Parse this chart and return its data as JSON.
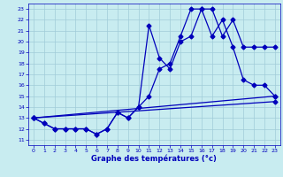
{
  "xlabel": "Graphe des températures (°c)",
  "xlim": [
    -0.5,
    23.5
  ],
  "ylim": [
    10.5,
    23.5
  ],
  "yticks": [
    11,
    12,
    13,
    14,
    15,
    16,
    17,
    18,
    19,
    20,
    21,
    22,
    23
  ],
  "xticks": [
    0,
    1,
    2,
    3,
    4,
    5,
    6,
    7,
    8,
    9,
    10,
    11,
    12,
    13,
    14,
    15,
    16,
    17,
    18,
    19,
    20,
    21,
    22,
    23
  ],
  "bg_color": "#c8ecf0",
  "line_color": "#0000bb",
  "grid_color": "#a0ccd8",
  "curve1_x": [
    0,
    1,
    2,
    3,
    4,
    5,
    6,
    7,
    8,
    9,
    10,
    11,
    12,
    13,
    14,
    15,
    16,
    17,
    18,
    19,
    20,
    21,
    22,
    23
  ],
  "curve1_y": [
    13.0,
    12.5,
    12.0,
    12.0,
    12.0,
    12.0,
    11.5,
    12.0,
    13.5,
    13.0,
    14.0,
    21.5,
    18.5,
    17.5,
    20.0,
    20.5,
    23.0,
    23.0,
    20.5,
    22.0,
    19.5,
    19.5,
    19.5,
    19.5
  ],
  "curve2_x": [
    0,
    1,
    2,
    3,
    4,
    5,
    6,
    7,
    8,
    9,
    10,
    11,
    12,
    13,
    14,
    15,
    16,
    17,
    18,
    19,
    20,
    21,
    22,
    23
  ],
  "curve2_y": [
    13.0,
    12.5,
    12.0,
    12.0,
    12.0,
    12.0,
    11.5,
    12.0,
    13.5,
    13.0,
    14.0,
    15.0,
    17.5,
    18.0,
    20.5,
    23.0,
    23.0,
    20.5,
    22.0,
    19.5,
    16.5,
    16.0,
    16.0,
    15.0
  ],
  "line3_x": [
    0,
    23
  ],
  "line3_y": [
    13.0,
    15.0
  ],
  "line4_x": [
    0,
    23
  ],
  "line4_y": [
    13.0,
    14.5
  ]
}
